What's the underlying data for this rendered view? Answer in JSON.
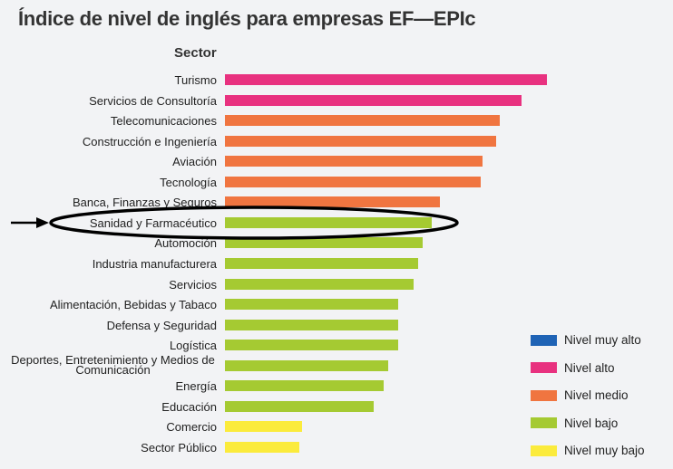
{
  "chart_data": {
    "type": "bar",
    "orientation": "horizontal",
    "title": "Índice de nivel de inglés para empresas EF—EPIc",
    "category_axis_title": "Sector",
    "value_axis": "none (relative bar lengths, unlabeled)",
    "grid": false,
    "legend_placement": "bottom-right",
    "categories": [
      "Turismo",
      "Servicios de Consultoría",
      "Telecomunicaciones",
      "Construcción e Ingeniería",
      "Aviación",
      "Tecnología",
      "Banca, Finanzas y Seguros",
      "Sanidad y Farmacéutico",
      "Automoción",
      "Industria manufacturera",
      "Servicios",
      "Alimentación, Bebidas y Tabaco",
      "Defensa y Seguridad",
      "Logística",
      "Deportes, Entretenimiento y Medios de Comunicación",
      "Energía",
      "Educación",
      "Comercio",
      "Sector Público"
    ],
    "values": [
      355,
      327,
      303,
      299,
      284,
      282,
      237,
      228,
      218,
      213,
      208,
      191,
      191,
      191,
      180,
      175,
      164,
      85,
      82
    ],
    "levels": [
      "alto",
      "alto",
      "medio",
      "medio",
      "medio",
      "medio",
      "medio",
      "bajo",
      "bajo",
      "bajo",
      "bajo",
      "bajo",
      "bajo",
      "bajo",
      "bajo",
      "bajo",
      "bajo",
      "muy_bajo",
      "muy_bajo"
    ],
    "legend": [
      {
        "key": "muy_alto",
        "label": "Nivel muy alto",
        "color": "#1f63b5"
      },
      {
        "key": "alto",
        "label": "Nivel alto",
        "color": "#e8317f"
      },
      {
        "key": "medio",
        "label": "Nivel medio",
        "color": "#f07540"
      },
      {
        "key": "bajo",
        "label": "Nivel bajo",
        "color": "#a5ca32"
      },
      {
        "key": "muy_bajo",
        "label": "Nivel muy bajo",
        "color": "#fbeb3c"
      }
    ],
    "highlighted_category": "Sanidad y Farmacéutico"
  }
}
